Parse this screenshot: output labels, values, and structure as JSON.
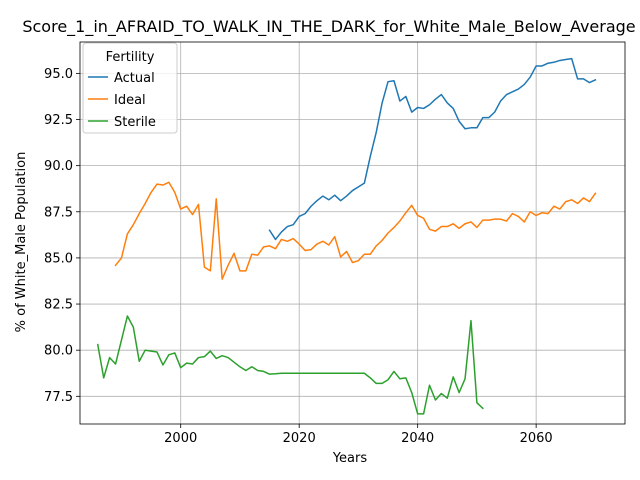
{
  "chart_data": {
    "type": "line",
    "title": "Score_1_in_AFRAID_TO_WALK_IN_THE_DARK_for_White_Male_Below_Average",
    "xlabel": "Years",
    "ylabel": "% of White_Male Population",
    "xlim": [
      1983,
      2075
    ],
    "ylim": [
      76.0,
      96.7
    ],
    "xticks": [
      2000,
      2020,
      2040,
      2060
    ],
    "xtick_labels": [
      "2000",
      "2020",
      "2040",
      "2060"
    ],
    "yticks": [
      77.5,
      80.0,
      82.5,
      85.0,
      87.5,
      90.0,
      92.5,
      95.0
    ],
    "ytick_labels": [
      "77.5",
      "80.0",
      "82.5",
      "85.0",
      "87.5",
      "90.0",
      "92.5",
      "95.0"
    ],
    "grid": true,
    "legend": {
      "title": "Fertility",
      "placement": "top-left"
    },
    "series": [
      {
        "name": "Actual",
        "color": "#1f77b4",
        "x": [
          2015,
          2016,
          2017,
          2018,
          2019,
          2020,
          2021,
          2022,
          2023,
          2024,
          2025,
          2026,
          2027,
          2028,
          2029,
          2030,
          2031,
          2032,
          2033,
          2034,
          2035,
          2036,
          2037,
          2038,
          2039,
          2040,
          2041,
          2042,
          2043,
          2044,
          2045,
          2046,
          2047,
          2048,
          2049,
          2050,
          2051,
          2052,
          2053,
          2054,
          2055,
          2056,
          2057,
          2058,
          2059,
          2060,
          2061,
          2062,
          2063,
          2064,
          2065,
          2066,
          2067,
          2068,
          2069,
          2070
        ],
        "y": [
          86.5,
          86.0,
          86.4,
          86.7,
          86.8,
          87.25,
          87.4,
          87.8,
          88.1,
          88.35,
          88.15,
          88.4,
          88.1,
          88.35,
          88.65,
          88.85,
          89.05,
          90.5,
          91.8,
          93.4,
          94.55,
          94.6,
          93.5,
          93.75,
          92.9,
          93.15,
          93.1,
          93.3,
          93.6,
          93.85,
          93.4,
          93.1,
          92.4,
          92.0,
          92.05,
          92.05,
          92.6,
          92.6,
          92.9,
          93.5,
          93.85,
          94.0,
          94.15,
          94.4,
          94.8,
          95.4,
          95.4,
          95.55,
          95.6,
          95.7,
          95.75,
          95.8,
          94.7,
          94.7,
          94.5,
          94.65
        ]
      },
      {
        "name": "Ideal",
        "color": "#ff7f0e",
        "x": [
          1989,
          1990,
          1991,
          1992,
          1993,
          1994,
          1995,
          1996,
          1997,
          1998,
          1999,
          2000,
          2001,
          2002,
          2003,
          2004,
          2005,
          2006,
          2007,
          2008,
          2009,
          2010,
          2011,
          2012,
          2013,
          2014,
          2015,
          2016,
          2017,
          2018,
          2019,
          2020,
          2021,
          2022,
          2023,
          2024,
          2025,
          2026,
          2027,
          2028,
          2029,
          2030,
          2031,
          2032,
          2033,
          2034,
          2035,
          2036,
          2037,
          2038,
          2039,
          2040,
          2041,
          2042,
          2043,
          2044,
          2045,
          2046,
          2047,
          2048,
          2049,
          2050,
          2051,
          2052,
          2053,
          2054,
          2055,
          2056,
          2057,
          2058,
          2059,
          2060,
          2061,
          2062,
          2063,
          2064,
          2065,
          2066,
          2067,
          2068,
          2069,
          2070
        ],
        "y": [
          84.6,
          85.0,
          86.3,
          86.8,
          87.4,
          87.95,
          88.55,
          89.0,
          88.95,
          89.1,
          88.55,
          87.65,
          87.8,
          87.35,
          87.9,
          84.5,
          84.3,
          88.2,
          83.85,
          84.6,
          85.25,
          84.3,
          84.3,
          85.2,
          85.15,
          85.6,
          85.65,
          85.5,
          86.0,
          85.9,
          86.05,
          85.75,
          85.4,
          85.45,
          85.75,
          85.9,
          85.7,
          86.15,
          85.05,
          85.35,
          84.75,
          84.85,
          85.2,
          85.2,
          85.65,
          85.95,
          86.35,
          86.65,
          87.0,
          87.45,
          87.85,
          87.3,
          87.15,
          86.55,
          86.45,
          86.7,
          86.7,
          86.85,
          86.6,
          86.85,
          86.95,
          86.65,
          87.05,
          87.05,
          87.1,
          87.1,
          87.0,
          87.4,
          87.25,
          86.95,
          87.5,
          87.3,
          87.45,
          87.4,
          87.8,
          87.65,
          88.05,
          88.15,
          87.95,
          88.25,
          88.05,
          88.5
        ]
      },
      {
        "name": "Sterile",
        "color": "#2ca02c",
        "x": [
          1986,
          1987,
          1988,
          1989,
          1990,
          1991,
          1992,
          1993,
          1994,
          1995,
          1996,
          1997,
          1998,
          1999,
          2000,
          2001,
          2002,
          2003,
          2004,
          2005,
          2006,
          2007,
          2008,
          2009,
          2010,
          2011,
          2012,
          2013,
          2014,
          2015,
          2016,
          2017,
          2018,
          2019,
          2020,
          2021,
          2022,
          2023,
          2024,
          2025,
          2026,
          2027,
          2028,
          2029,
          2030,
          2031,
          2032,
          2033,
          2034,
          2035,
          2036,
          2037,
          2038,
          2039,
          2040,
          2041,
          2042,
          2043,
          2044,
          2045,
          2046,
          2047,
          2048,
          2049,
          2050,
          2051
        ],
        "y": [
          80.3,
          78.5,
          79.6,
          79.25,
          80.55,
          81.85,
          81.25,
          79.4,
          80.0,
          79.95,
          79.9,
          79.2,
          79.75,
          79.85,
          79.05,
          79.3,
          79.25,
          79.6,
          79.65,
          79.95,
          79.55,
          79.7,
          79.6,
          79.35,
          79.1,
          78.9,
          79.1,
          78.9,
          78.85,
          78.7,
          78.72,
          78.75,
          78.75,
          78.75,
          78.75,
          78.75,
          78.75,
          78.75,
          78.75,
          78.75,
          78.75,
          78.75,
          78.75,
          78.75,
          78.75,
          78.75,
          78.5,
          78.2,
          78.2,
          78.4,
          78.85,
          78.45,
          78.5,
          77.7,
          76.55,
          76.55,
          78.1,
          77.3,
          77.65,
          77.4,
          78.55,
          77.7,
          78.45,
          81.6,
          77.15,
          76.85
        ]
      }
    ]
  }
}
